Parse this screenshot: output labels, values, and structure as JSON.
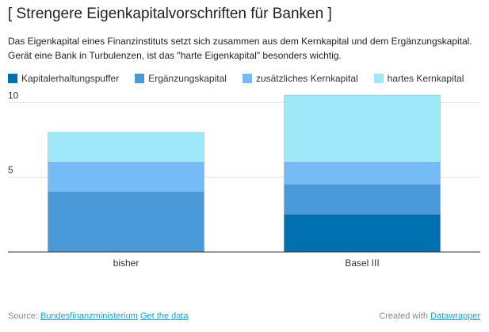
{
  "chart_data": {
    "type": "bar",
    "stacked": true,
    "title": "[ Strengere Eigenkapitalvorschriften für Banken ]",
    "subtitle": "Das Eigenkapital eines Finanzinstituts setzt sich zusammen aus dem Kernkapital und dem Ergänzungskapital. Gerät eine Bank in Turbulenzen, ist das \"harte Eigenkapital\" besonders wichtig.",
    "categories": [
      "bisher",
      "Basel III"
    ],
    "series": [
      {
        "name": "Kapitalerhaltungspuffer",
        "values": [
          0,
          2.5
        ],
        "color": "#0070b0"
      },
      {
        "name": "Ergänzungskapital",
        "values": [
          4,
          2
        ],
        "color": "#4a99d9"
      },
      {
        "name": "zusätzliches Kernkapital",
        "values": [
          2,
          1.5
        ],
        "color": "#75bcf7"
      },
      {
        "name": "hartes Kernkapital",
        "values": [
          2,
          4.5
        ],
        "color": "#9fe8fa"
      }
    ],
    "ylim": [
      0,
      10.5
    ],
    "yticks": [
      5,
      10
    ],
    "grid": true,
    "legend": "top-left"
  },
  "footer": {
    "source_prefix": "Source:",
    "source_name": "Bundesfinanzministerium",
    "get_data": "Get the data",
    "created_with": "Created with",
    "tool": "Datawrapper"
  }
}
